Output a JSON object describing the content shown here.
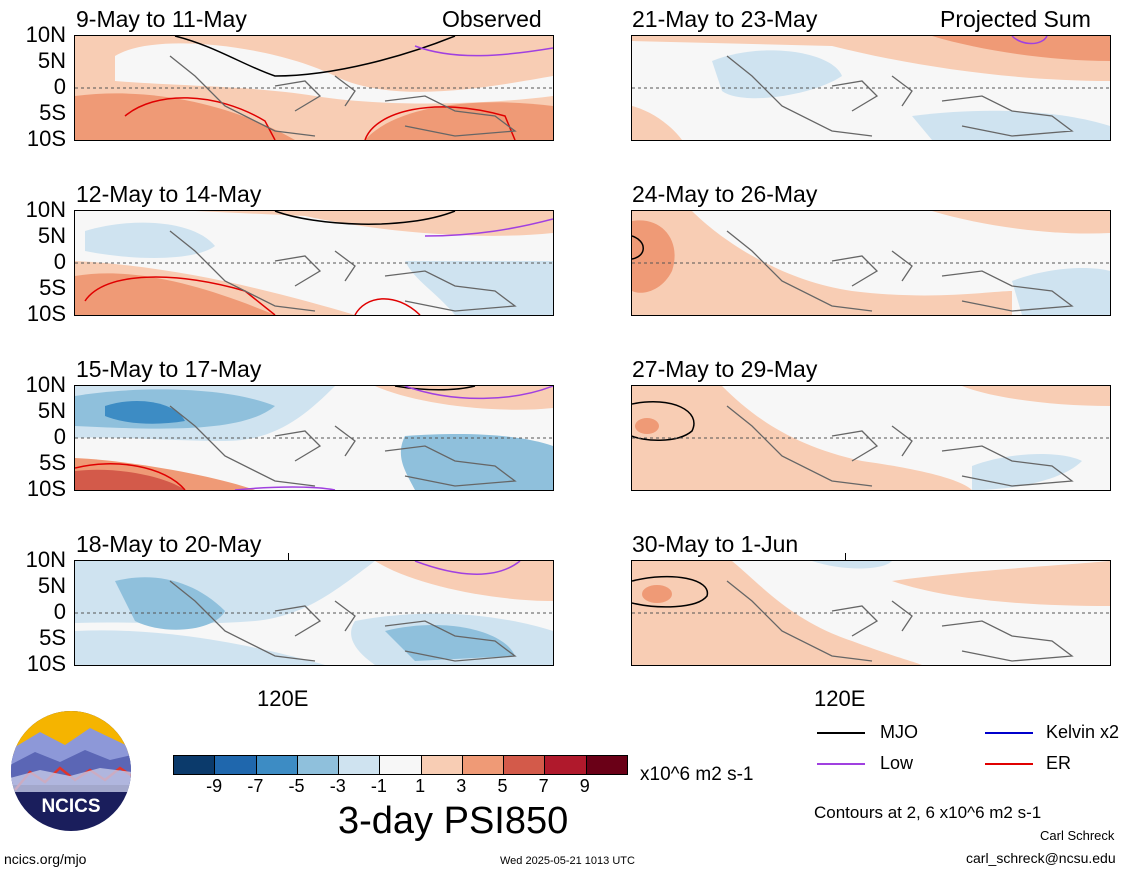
{
  "column_labels": {
    "left": "Observed",
    "right": "Projected Sum"
  },
  "panels": [
    {
      "title": "9-May to 11-May"
    },
    {
      "title": "12-May to 14-May"
    },
    {
      "title": "15-May to 17-May"
    },
    {
      "title": "18-May to 20-May"
    },
    {
      "title": "21-May to 23-May"
    },
    {
      "title": "24-May to 26-May"
    },
    {
      "title": "27-May to 29-May"
    },
    {
      "title": "30-May to 1-Jun"
    }
  ],
  "lat_ticks": [
    "10N",
    "5N",
    "0",
    "5S",
    "10S"
  ],
  "lon_tick": "120E",
  "colorbar": {
    "labels": [
      "-9",
      "-7",
      "-5",
      "-3",
      "-1",
      "1",
      "3",
      "5",
      "7",
      "9"
    ],
    "units": "x10^6 m2 s-1",
    "colors": [
      "#0b3a6b",
      "#1f67ad",
      "#3d8cc4",
      "#8fc0dc",
      "#cfe3f0",
      "#f7f7f7",
      "#f8cdb4",
      "#ef9a76",
      "#d35a4a",
      "#b0192c",
      "#6a0017"
    ],
    "title": "3-day PSI850"
  },
  "legend": {
    "items": [
      {
        "label": "MJO",
        "color": "#000000"
      },
      {
        "label": "Kelvin x2",
        "color": "#0000cc"
      },
      {
        "label": "Low",
        "color": "#a040e0"
      },
      {
        "label": "ER",
        "color": "#e00000"
      }
    ],
    "note": "Contours at 2, 6 x10^6 m2 s-1"
  },
  "logo": {
    "text": "NCICS"
  },
  "footer": {
    "left": "ncics.org/mjo",
    "center": "Wed 2025-05-21 1013 UTC",
    "author": "Carl Schreck",
    "email": "carl_schreck@ncsu.edu"
  }
}
